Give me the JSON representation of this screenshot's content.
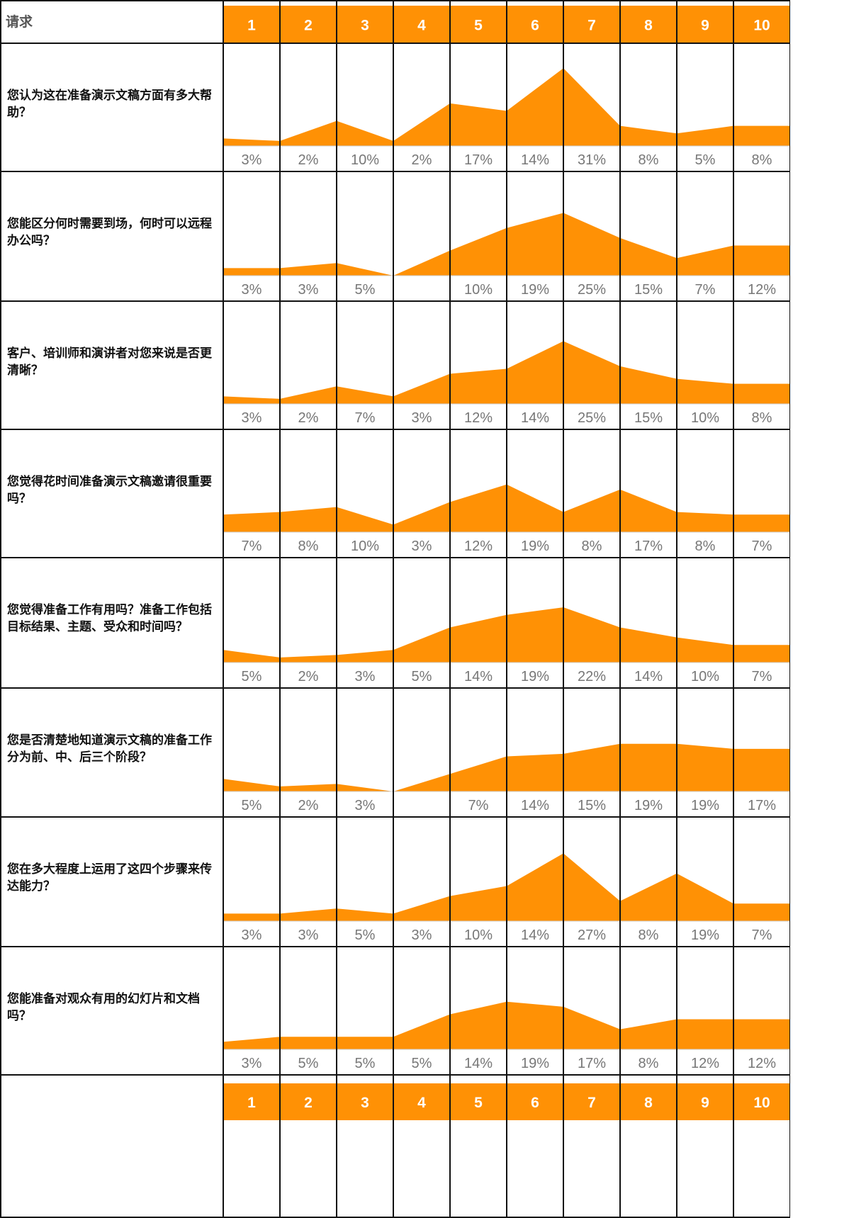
{
  "header": {
    "corner_label": "请求"
  },
  "chart_data": {
    "type": "area",
    "categories": [
      "1",
      "2",
      "3",
      "4",
      "5",
      "6",
      "7",
      "8",
      "9",
      "10"
    ],
    "accent_color": "#FF9105",
    "rows": [
      {
        "question": "您认为这在准备演示文稿方面有多大帮助？",
        "values": [
          3,
          2,
          10,
          2,
          17,
          14,
          31,
          8,
          5,
          8
        ],
        "labels": [
          "3%",
          "2%",
          "10%",
          "2%",
          "17%",
          "14%",
          "31%",
          "8%",
          "5%",
          "8%"
        ]
      },
      {
        "question": "您能区分何时需要到场，何时可以远程办公吗？",
        "values": [
          3,
          3,
          5,
          0,
          10,
          19,
          25,
          15,
          7,
          12
        ],
        "labels": [
          "3%",
          "3%",
          "5%",
          "",
          "10%",
          "19%",
          "25%",
          "15%",
          "7%",
          "12%"
        ]
      },
      {
        "question": "客户、培训师和演讲者对您来说是否更清晰？",
        "values": [
          3,
          2,
          7,
          3,
          12,
          14,
          25,
          15,
          10,
          8
        ],
        "labels": [
          "3%",
          "2%",
          "7%",
          "3%",
          "12%",
          "14%",
          "25%",
          "15%",
          "10%",
          "8%"
        ]
      },
      {
        "question": "您觉得花时间准备演示文稿邀请很重要吗？",
        "values": [
          7,
          8,
          10,
          3,
          12,
          19,
          8,
          17,
          8,
          7
        ],
        "labels": [
          "7%",
          "8%",
          "10%",
          "3%",
          "12%",
          "19%",
          "8%",
          "17%",
          "8%",
          "7%"
        ]
      },
      {
        "question": "您觉得准备工作有用吗？准备工作包括目标结果、主题、受众和时间吗？",
        "values": [
          5,
          2,
          3,
          5,
          14,
          19,
          22,
          14,
          10,
          7
        ],
        "labels": [
          "5%",
          "2%",
          "3%",
          "5%",
          "14%",
          "19%",
          "22%",
          "14%",
          "10%",
          "7%"
        ]
      },
      {
        "question": "您是否清楚地知道演示文稿的准备工作分为前、中、后三个阶段？",
        "values": [
          5,
          2,
          3,
          0,
          7,
          14,
          15,
          19,
          19,
          17
        ],
        "labels": [
          "5%",
          "2%",
          "3%",
          "",
          "7%",
          "14%",
          "15%",
          "19%",
          "19%",
          "17%"
        ]
      },
      {
        "question": "您在多大程度上运用了这四个步骤来传达能力？",
        "values": [
          3,
          3,
          5,
          3,
          10,
          14,
          27,
          8,
          19,
          7
        ],
        "labels": [
          "3%",
          "3%",
          "5%",
          "3%",
          "10%",
          "14%",
          "27%",
          "8%",
          "19%",
          "7%"
        ]
      },
      {
        "question": "您能准备对观众有用的幻灯片和文档吗？",
        "values": [
          3,
          5,
          5,
          5,
          14,
          19,
          17,
          8,
          12,
          12
        ],
        "labels": [
          "3%",
          "5%",
          "5%",
          "5%",
          "14%",
          "19%",
          "17%",
          "8%",
          "12%",
          "12%"
        ]
      }
    ]
  }
}
